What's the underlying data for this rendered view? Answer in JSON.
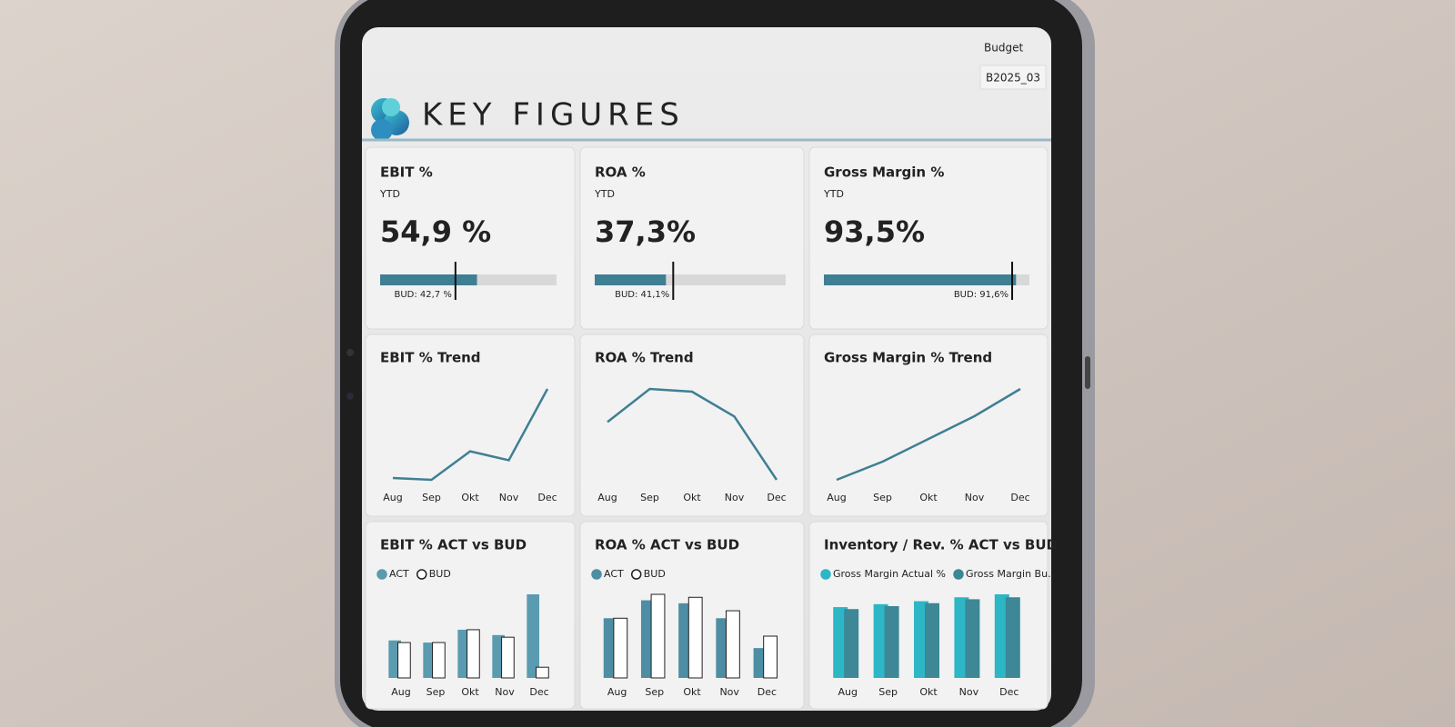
{
  "header": {
    "title": "KEY FIGURES",
    "filter_label": "Budget",
    "filter_value": "B2025_03"
  },
  "kpi_scale": [
    0,
    100
  ],
  "kpis": [
    {
      "title": "EBIT %",
      "subtitle": "YTD",
      "value": 54.9,
      "value_label": "54,9 %",
      "budget": 42.7,
      "budget_label": "BUD: 42,7 %"
    },
    {
      "title": "ROA %",
      "subtitle": "YTD",
      "value": 37.3,
      "value_label": "37,3%",
      "budget": 41.1,
      "budget_label": "BUD: 41,1%"
    },
    {
      "title": "Gross Margin %",
      "subtitle": "YTD",
      "value": 93.5,
      "value_label": "93,5%",
      "budget": 91.6,
      "budget_label": "BUD: 91,6%"
    }
  ],
  "trends": [
    {
      "title": "EBIT % Trend",
      "color": "#3f7f93",
      "categories": [
        "Aug",
        "Sep",
        "Okt",
        "Nov",
        "Dec"
      ],
      "values": [
        20,
        19,
        35,
        30,
        70
      ]
    },
    {
      "title": "ROA % Trend",
      "color": "#3f7f93",
      "categories": [
        "Aug",
        "Sep",
        "Okt",
        "Nov",
        "Dec"
      ],
      "values": [
        36,
        48,
        47,
        38,
        15
      ]
    },
    {
      "title": "Gross Margin % Trend",
      "color": "#3f7f93",
      "categories": [
        "Aug",
        "Sep",
        "Okt",
        "Nov",
        "Dec"
      ],
      "values": [
        88,
        90,
        92.5,
        95,
        98
      ]
    }
  ],
  "comparisons": [
    {
      "title": "EBIT % ACT vs BUD",
      "categories": [
        "Aug",
        "Sep",
        "Okt",
        "Nov",
        "Dec"
      ],
      "series": [
        {
          "name": "ACT",
          "color": "#5a9bb0",
          "values": [
            35,
            33,
            45,
            40,
            78
          ]
        },
        {
          "name": "BUD",
          "color": "#ffffff",
          "values": [
            33,
            33,
            45,
            38,
            10
          ]
        }
      ]
    },
    {
      "title": "ROA % ACT vs BUD",
      "categories": [
        "Aug",
        "Sep",
        "Okt",
        "Nov",
        "Dec"
      ],
      "series": [
        {
          "name": "ACT",
          "color": "#4d8ea4",
          "values": [
            40,
            52,
            50,
            40,
            20
          ]
        },
        {
          "name": "BUD",
          "color": "#ffffff",
          "values": [
            40,
            56,
            54,
            45,
            28
          ]
        }
      ]
    },
    {
      "title": "Inventory / Rev. % ACT vs BUD",
      "categories": [
        "Aug",
        "Sep",
        "Okt",
        "Nov",
        "Dec"
      ],
      "series": [
        {
          "name": "Gross Margin Actual %",
          "color": "#2cb6c6",
          "values": [
            72,
            75,
            78,
            82,
            85
          ]
        },
        {
          "name": "Gross Margin Bu...",
          "color": "#3d8796",
          "values": [
            70,
            73,
            76,
            80,
            82
          ]
        }
      ]
    }
  ]
}
